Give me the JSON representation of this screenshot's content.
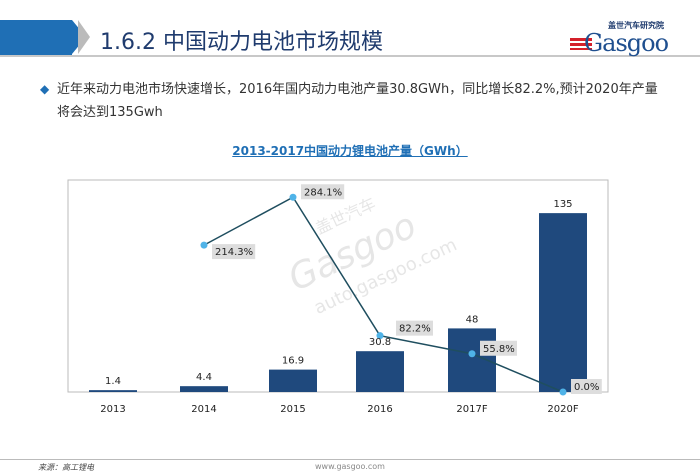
{
  "header": {
    "title": "1.6.2 中国动力电池市场规模",
    "logo_cn": "盖世汽车研究院",
    "logo_en": "Gasgoo"
  },
  "body": {
    "text": "近年来动力电池市场快速增长，2016年国内动力电池产量30.8GWh，同比增长82.2%,预计2020年产量将会达到135Gwh"
  },
  "colors": {
    "bar": "#1f497d",
    "line": "#1f4e5f",
    "marker": "#4fb3e8",
    "accent": "#1f6fb5"
  },
  "chart_data": {
    "type": "bar+line",
    "title": "2013-2017中国动力锂电池产量（GWh）",
    "categories": [
      "2013",
      "2014",
      "2015",
      "2016",
      "2017F",
      "2020F"
    ],
    "series": [
      {
        "type": "bar",
        "values": [
          1.4,
          4.4,
          16.9,
          30.8,
          48,
          135
        ],
        "labels": [
          "1.4",
          "4.4",
          "16.9",
          "30.8",
          "48",
          "135"
        ]
      },
      {
        "type": "line",
        "axis": "secondary",
        "values": [
          null,
          214.3,
          284.1,
          82.2,
          55.8,
          0.0
        ],
        "labels": [
          "",
          "214.3%",
          "284.1%",
          "82.2%",
          "55.8%",
          "0.0%"
        ]
      }
    ],
    "ylim": [
      0,
      160
    ],
    "y2lim": [
      0,
      300
    ],
    "grid": false
  },
  "watermark": {
    "cn": "盖世汽车",
    "en": "Gasgoo",
    "url": "auto.gasgoo.com"
  },
  "footer": {
    "source": "来源：高工锂电",
    "website": "www.gasgoo.com"
  }
}
